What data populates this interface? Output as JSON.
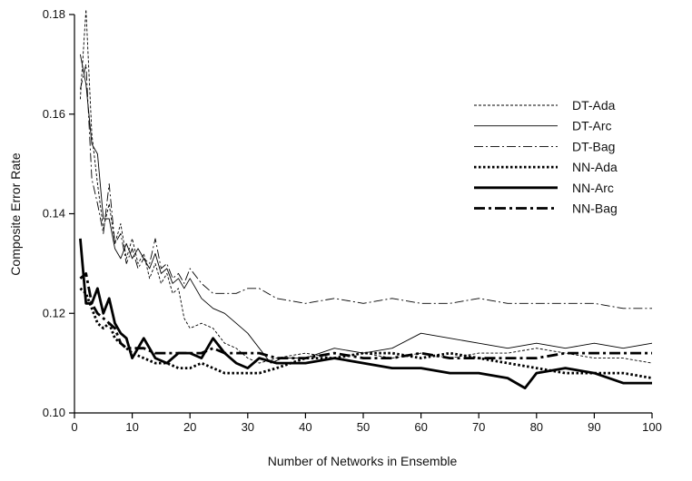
{
  "chart_data": {
    "type": "line",
    "title": "",
    "xlabel": "Number of Networks in Ensemble",
    "ylabel": "Composite Error Rate",
    "xlim": [
      0,
      100
    ],
    "ylim": [
      0.1,
      0.18
    ],
    "xticks": [
      "0",
      "10",
      "20",
      "30",
      "40",
      "50",
      "60",
      "70",
      "80",
      "90",
      "100"
    ],
    "yticks": [
      "0.10",
      "0.12",
      "0.14",
      "0.16",
      "0.18"
    ],
    "grid": false,
    "legend_position": "upper-right",
    "series": [
      {
        "name": "DT-Ada",
        "style": "dashed-thin",
        "color": "#000000",
        "points": [
          [
            1,
            0.163
          ],
          [
            2,
            0.181
          ],
          [
            3,
            0.156
          ],
          [
            4,
            0.146
          ],
          [
            5,
            0.137
          ],
          [
            6,
            0.142
          ],
          [
            7,
            0.134
          ],
          [
            8,
            0.138
          ],
          [
            9,
            0.131
          ],
          [
            10,
            0.135
          ],
          [
            11,
            0.13
          ],
          [
            12,
            0.132
          ],
          [
            13,
            0.127
          ],
          [
            14,
            0.13
          ],
          [
            15,
            0.126
          ],
          [
            16,
            0.128
          ],
          [
            17,
            0.124
          ],
          [
            18,
            0.125
          ],
          [
            19,
            0.119
          ],
          [
            20,
            0.117
          ],
          [
            22,
            0.118
          ],
          [
            24,
            0.117
          ],
          [
            26,
            0.114
          ],
          [
            28,
            0.113
          ],
          [
            30,
            0.111
          ],
          [
            32,
            0.11
          ],
          [
            35,
            0.111
          ],
          [
            40,
            0.112
          ],
          [
            45,
            0.111
          ],
          [
            50,
            0.112
          ],
          [
            55,
            0.111
          ],
          [
            60,
            0.112
          ],
          [
            65,
            0.111
          ],
          [
            70,
            0.112
          ],
          [
            75,
            0.112
          ],
          [
            80,
            0.113
          ],
          [
            85,
            0.112
          ],
          [
            90,
            0.111
          ],
          [
            95,
            0.111
          ],
          [
            100,
            0.11
          ]
        ]
      },
      {
        "name": "DT-Arc",
        "style": "solid-thin",
        "color": "#000000",
        "points": [
          [
            1,
            0.172
          ],
          [
            2,
            0.166
          ],
          [
            3,
            0.154
          ],
          [
            4,
            0.152
          ],
          [
            5,
            0.139
          ],
          [
            6,
            0.139
          ],
          [
            7,
            0.133
          ],
          [
            8,
            0.131
          ],
          [
            9,
            0.134
          ],
          [
            10,
            0.131
          ],
          [
            11,
            0.133
          ],
          [
            12,
            0.131
          ],
          [
            13,
            0.129
          ],
          [
            14,
            0.132
          ],
          [
            15,
            0.128
          ],
          [
            16,
            0.129
          ],
          [
            17,
            0.126
          ],
          [
            18,
            0.127
          ],
          [
            19,
            0.125
          ],
          [
            20,
            0.127
          ],
          [
            22,
            0.123
          ],
          [
            24,
            0.121
          ],
          [
            26,
            0.12
          ],
          [
            28,
            0.118
          ],
          [
            30,
            0.116
          ],
          [
            32,
            0.113
          ],
          [
            34,
            0.11
          ],
          [
            36,
            0.111
          ],
          [
            40,
            0.111
          ],
          [
            45,
            0.113
          ],
          [
            50,
            0.112
          ],
          [
            55,
            0.113
          ],
          [
            60,
            0.116
          ],
          [
            65,
            0.115
          ],
          [
            70,
            0.114
          ],
          [
            75,
            0.113
          ],
          [
            80,
            0.114
          ],
          [
            85,
            0.113
          ],
          [
            90,
            0.114
          ],
          [
            95,
            0.113
          ],
          [
            100,
            0.114
          ]
        ]
      },
      {
        "name": "DT-Bag",
        "style": "dashdot-thin",
        "color": "#000000",
        "points": [
          [
            1,
            0.165
          ],
          [
            2,
            0.17
          ],
          [
            3,
            0.147
          ],
          [
            4,
            0.142
          ],
          [
            5,
            0.136
          ],
          [
            6,
            0.146
          ],
          [
            7,
            0.134
          ],
          [
            8,
            0.136
          ],
          [
            9,
            0.13
          ],
          [
            10,
            0.133
          ],
          [
            11,
            0.129
          ],
          [
            12,
            0.131
          ],
          [
            13,
            0.13
          ],
          [
            14,
            0.135
          ],
          [
            15,
            0.129
          ],
          [
            16,
            0.13
          ],
          [
            17,
            0.127
          ],
          [
            18,
            0.128
          ],
          [
            19,
            0.126
          ],
          [
            20,
            0.129
          ],
          [
            22,
            0.126
          ],
          [
            24,
            0.124
          ],
          [
            26,
            0.124
          ],
          [
            28,
            0.124
          ],
          [
            30,
            0.125
          ],
          [
            32,
            0.125
          ],
          [
            35,
            0.123
          ],
          [
            40,
            0.122
          ],
          [
            45,
            0.123
          ],
          [
            50,
            0.122
          ],
          [
            55,
            0.123
          ],
          [
            60,
            0.122
          ],
          [
            65,
            0.122
          ],
          [
            70,
            0.123
          ],
          [
            75,
            0.122
          ],
          [
            80,
            0.122
          ],
          [
            85,
            0.122
          ],
          [
            90,
            0.122
          ],
          [
            95,
            0.121
          ],
          [
            100,
            0.121
          ]
        ]
      },
      {
        "name": "NN-Ada",
        "style": "dotted-thick",
        "color": "#000000",
        "points": [
          [
            1,
            0.125
          ],
          [
            2,
            0.124
          ],
          [
            3,
            0.121
          ],
          [
            4,
            0.118
          ],
          [
            5,
            0.117
          ],
          [
            6,
            0.118
          ],
          [
            7,
            0.115
          ],
          [
            8,
            0.114
          ],
          [
            9,
            0.113
          ],
          [
            10,
            0.112
          ],
          [
            12,
            0.111
          ],
          [
            14,
            0.11
          ],
          [
            16,
            0.11
          ],
          [
            18,
            0.109
          ],
          [
            20,
            0.109
          ],
          [
            22,
            0.11
          ],
          [
            24,
            0.109
          ],
          [
            26,
            0.108
          ],
          [
            28,
            0.108
          ],
          [
            30,
            0.108
          ],
          [
            32,
            0.108
          ],
          [
            35,
            0.109
          ],
          [
            40,
            0.111
          ],
          [
            45,
            0.111
          ],
          [
            50,
            0.112
          ],
          [
            55,
            0.112
          ],
          [
            60,
            0.111
          ],
          [
            65,
            0.112
          ],
          [
            70,
            0.111
          ],
          [
            75,
            0.11
          ],
          [
            80,
            0.109
          ],
          [
            85,
            0.108
          ],
          [
            90,
            0.108
          ],
          [
            95,
            0.108
          ],
          [
            100,
            0.107
          ]
        ]
      },
      {
        "name": "NN-Arc",
        "style": "solid-thick",
        "color": "#000000",
        "points": [
          [
            1,
            0.135
          ],
          [
            2,
            0.122
          ],
          [
            3,
            0.122
          ],
          [
            4,
            0.125
          ],
          [
            5,
            0.12
          ],
          [
            6,
            0.123
          ],
          [
            7,
            0.118
          ],
          [
            8,
            0.116
          ],
          [
            9,
            0.115
          ],
          [
            10,
            0.111
          ],
          [
            12,
            0.115
          ],
          [
            14,
            0.111
          ],
          [
            16,
            0.11
          ],
          [
            18,
            0.112
          ],
          [
            20,
            0.112
          ],
          [
            22,
            0.111
          ],
          [
            24,
            0.115
          ],
          [
            26,
            0.112
          ],
          [
            28,
            0.11
          ],
          [
            30,
            0.109
          ],
          [
            32,
            0.111
          ],
          [
            35,
            0.11
          ],
          [
            40,
            0.11
          ],
          [
            45,
            0.111
          ],
          [
            50,
            0.11
          ],
          [
            55,
            0.109
          ],
          [
            60,
            0.109
          ],
          [
            65,
            0.108
          ],
          [
            70,
            0.108
          ],
          [
            75,
            0.107
          ],
          [
            78,
            0.105
          ],
          [
            80,
            0.108
          ],
          [
            85,
            0.109
          ],
          [
            90,
            0.108
          ],
          [
            95,
            0.106
          ],
          [
            100,
            0.106
          ]
        ]
      },
      {
        "name": "NN-Bag",
        "style": "dashdot-thick",
        "color": "#000000",
        "points": [
          [
            1,
            0.127
          ],
          [
            2,
            0.128
          ],
          [
            3,
            0.122
          ],
          [
            4,
            0.12
          ],
          [
            5,
            0.119
          ],
          [
            6,
            0.118
          ],
          [
            7,
            0.117
          ],
          [
            8,
            0.114
          ],
          [
            9,
            0.113
          ],
          [
            10,
            0.113
          ],
          [
            12,
            0.113
          ],
          [
            14,
            0.112
          ],
          [
            16,
            0.112
          ],
          [
            18,
            0.112
          ],
          [
            20,
            0.112
          ],
          [
            22,
            0.112
          ],
          [
            24,
            0.113
          ],
          [
            26,
            0.112
          ],
          [
            28,
            0.112
          ],
          [
            30,
            0.112
          ],
          [
            32,
            0.112
          ],
          [
            35,
            0.111
          ],
          [
            40,
            0.111
          ],
          [
            45,
            0.112
          ],
          [
            50,
            0.111
          ],
          [
            55,
            0.111
          ],
          [
            60,
            0.112
          ],
          [
            65,
            0.111
          ],
          [
            70,
            0.111
          ],
          [
            75,
            0.111
          ],
          [
            80,
            0.111
          ],
          [
            85,
            0.112
          ],
          [
            90,
            0.112
          ],
          [
            95,
            0.112
          ],
          [
            100,
            0.112
          ]
        ]
      }
    ]
  }
}
